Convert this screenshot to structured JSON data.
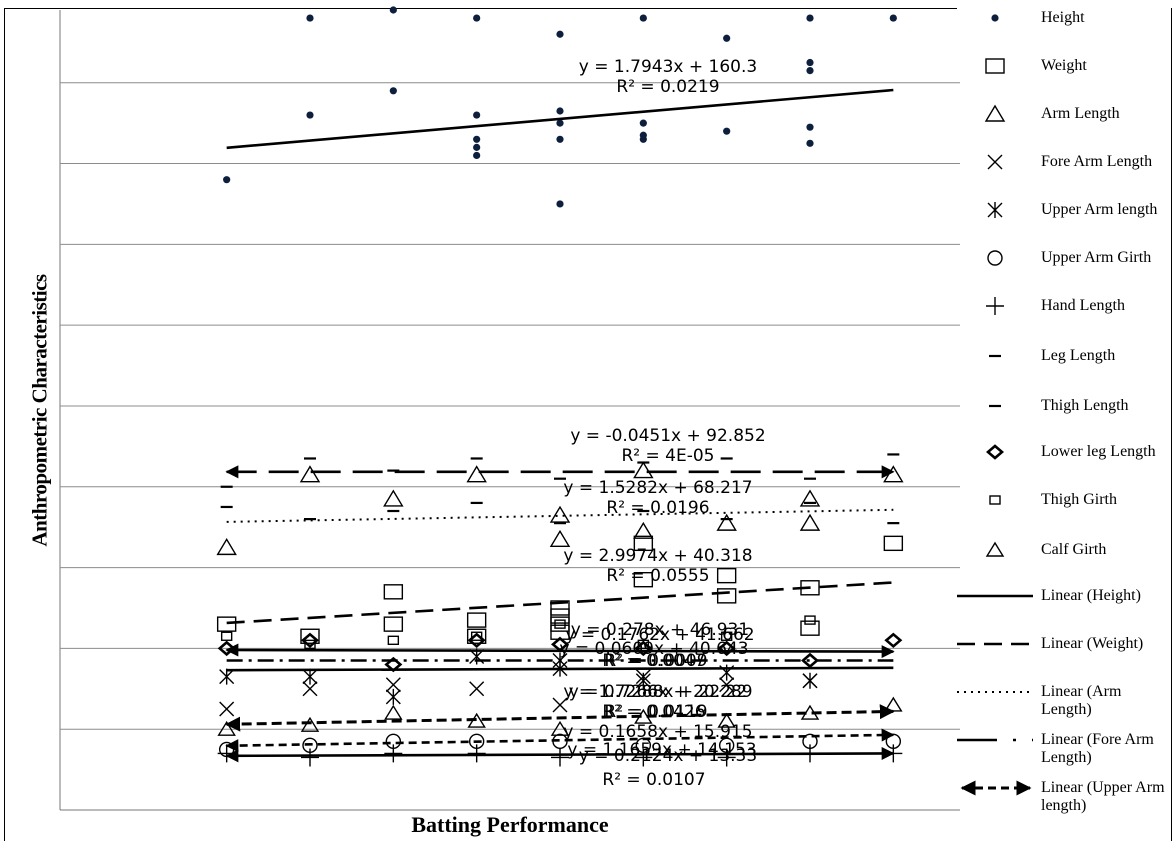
{
  "chart_data": {
    "type": "scatter",
    "xlabel": "Batting Performance",
    "ylabel": "Anthropometric Characteristics",
    "xlim": [
      0,
      10.8
    ],
    "ylim": [
      0,
      198
    ],
    "grid_lines_y": [
      20,
      40,
      60,
      80,
      100,
      120,
      140,
      160,
      180
    ],
    "legend_position": "right",
    "series": [
      {
        "name": "Height",
        "marker": "dot",
        "points": [
          [
            2,
            156
          ],
          [
            3,
            196
          ],
          [
            3,
            172
          ],
          [
            4,
            198
          ],
          [
            4,
            178
          ],
          [
            5,
            196
          ],
          [
            5,
            172
          ],
          [
            5,
            166
          ],
          [
            5,
            164
          ],
          [
            5,
            162
          ],
          [
            6,
            192
          ],
          [
            6,
            173
          ],
          [
            6,
            170
          ],
          [
            6,
            166
          ],
          [
            6,
            150
          ],
          [
            7,
            196
          ],
          [
            7,
            170
          ],
          [
            7,
            166
          ],
          [
            7,
            167
          ],
          [
            8,
            191
          ],
          [
            8,
            168
          ],
          [
            9,
            196
          ],
          [
            9,
            183
          ],
          [
            9,
            185
          ],
          [
            9,
            169
          ],
          [
            9,
            165
          ],
          [
            10,
            196
          ]
        ]
      },
      {
        "name": "Weight",
        "marker": "square",
        "points": [
          [
            2,
            46
          ],
          [
            3,
            43
          ],
          [
            4,
            54
          ],
          [
            4,
            46
          ],
          [
            5,
            47
          ],
          [
            5,
            43
          ],
          [
            6,
            50
          ],
          [
            6,
            48
          ],
          [
            6,
            46
          ],
          [
            6,
            44
          ],
          [
            7,
            66
          ],
          [
            7,
            57
          ],
          [
            8,
            58
          ],
          [
            8,
            53
          ],
          [
            9,
            55
          ],
          [
            9,
            45
          ],
          [
            10,
            66
          ]
        ]
      },
      {
        "name": "Arm Length",
        "marker": "triangle",
        "points": [
          [
            2,
            65
          ],
          [
            3,
            83
          ],
          [
            4,
            77
          ],
          [
            5,
            83
          ],
          [
            6,
            73
          ],
          [
            6,
            67
          ],
          [
            7,
            84
          ],
          [
            7,
            69
          ],
          [
            8,
            71
          ],
          [
            9,
            77
          ],
          [
            9,
            71
          ],
          [
            10,
            83
          ]
        ]
      },
      {
        "name": "Fore Arm Length",
        "marker": "x",
        "points": [
          [
            2,
            25
          ],
          [
            3,
            30
          ],
          [
            4,
            31
          ],
          [
            5,
            30
          ],
          [
            6,
            26
          ],
          [
            7,
            33
          ],
          [
            8,
            31
          ],
          [
            9,
            32
          ]
        ]
      },
      {
        "name": "Upper Arm length",
        "marker": "asterisk",
        "points": [
          [
            2,
            33
          ],
          [
            3,
            33
          ],
          [
            4,
            28
          ],
          [
            5,
            38
          ],
          [
            6,
            37
          ],
          [
            6,
            35
          ],
          [
            7,
            32
          ],
          [
            8,
            34
          ],
          [
            9,
            32
          ]
        ]
      },
      {
        "name": "Upper Arm Girth",
        "marker": "circle",
        "points": [
          [
            2,
            15
          ],
          [
            3,
            16
          ],
          [
            4,
            17
          ],
          [
            5,
            17
          ],
          [
            6,
            17
          ],
          [
            7,
            16
          ],
          [
            8,
            16
          ],
          [
            9,
            17
          ],
          [
            10,
            17
          ]
        ]
      },
      {
        "name": "Hand Length",
        "marker": "plus",
        "points": [
          [
            2,
            14
          ],
          [
            3,
            13
          ],
          [
            4,
            14
          ],
          [
            5,
            14
          ],
          [
            6,
            13
          ],
          [
            7,
            13
          ],
          [
            8,
            13
          ],
          [
            9,
            14
          ],
          [
            10,
            14
          ]
        ]
      },
      {
        "name": "Leg Length",
        "marker": "dash",
        "points": [
          [
            2,
            80
          ],
          [
            3,
            87
          ],
          [
            4,
            84
          ],
          [
            5,
            87
          ],
          [
            6,
            82
          ],
          [
            7,
            86
          ],
          [
            8,
            87
          ],
          [
            9,
            82
          ],
          [
            10,
            88
          ]
        ]
      },
      {
        "name": "Thigh Length",
        "marker": "dash",
        "points": [
          [
            2,
            75
          ],
          [
            3,
            72
          ],
          [
            4,
            74
          ],
          [
            5,
            76
          ],
          [
            6,
            71
          ],
          [
            7,
            74
          ],
          [
            8,
            72
          ],
          [
            9,
            76
          ],
          [
            10,
            71
          ]
        ]
      },
      {
        "name": "Lower leg Length",
        "marker": "diamond",
        "points": [
          [
            2,
            40
          ],
          [
            3,
            42
          ],
          [
            4,
            36
          ],
          [
            5,
            42
          ],
          [
            6,
            41
          ],
          [
            7,
            40
          ],
          [
            8,
            40
          ],
          [
            9,
            37
          ],
          [
            10,
            42
          ]
        ]
      },
      {
        "name": "Thigh Girth",
        "marker": "small-square",
        "points": [
          [
            2,
            43
          ],
          [
            3,
            41
          ],
          [
            4,
            42
          ],
          [
            5,
            43
          ],
          [
            6,
            46
          ],
          [
            7,
            41
          ],
          [
            8,
            43
          ],
          [
            9,
            47
          ]
        ]
      },
      {
        "name": "Calf Girth",
        "marker": "small-triangle",
        "points": [
          [
            2,
            20
          ],
          [
            3,
            21
          ],
          [
            4,
            24
          ],
          [
            5,
            22
          ],
          [
            6,
            20
          ],
          [
            7,
            23
          ],
          [
            8,
            22
          ],
          [
            9,
            24
          ],
          [
            10,
            26
          ]
        ]
      }
    ],
    "trendlines": [
      {
        "name": "Linear (Height)",
        "style": "solid",
        "x": [
          2,
          10
        ],
        "y": [
          163.9,
          178.2
        ]
      },
      {
        "name": "Linear (Weight)",
        "style": "dash",
        "x": [
          2,
          10
        ],
        "y": [
          46.3,
          56.3
        ]
      },
      {
        "name": "Linear (Arm Length)",
        "style": "dot",
        "x": [
          2,
          10
        ],
        "y": [
          71.3,
          74.3
        ]
      },
      {
        "name": "Linear (Fore Arm Length)",
        "style": "dashdot",
        "x": [
          2,
          10
        ],
        "y": [
          37.0,
          37.0
        ]
      },
      {
        "name": "Linear (Upper Arm length)",
        "style": "dash-arrow",
        "x": [
          2,
          10
        ],
        "y": [
          21.2,
          24.4
        ]
      },
      {
        "name": "Linear",
        "style": "long-dash-arrow",
        "x": [
          2,
          10
        ],
        "y": [
          83.7,
          83.7
        ]
      },
      {
        "name": "Linear",
        "style": "solid-arrow",
        "x": [
          2,
          10
        ],
        "y": [
          39.6,
          39.2
        ]
      },
      {
        "name": "Linear",
        "style": "solid",
        "x": [
          2,
          10
        ],
        "y": [
          34.6,
          35.2
        ]
      },
      {
        "name": "Linear",
        "style": "short-dash-arrow",
        "x": [
          2,
          10
        ],
        "y": [
          15.9,
          18.6
        ]
      },
      {
        "name": "Linear",
        "style": "solid-arrow",
        "x": [
          2,
          10
        ],
        "y": [
          13.4,
          14.0
        ]
      }
    ],
    "annotations": [
      {
        "eq": "y = 1.7943x + 160.3",
        "r2": "R² = 0.0219"
      },
      {
        "eq": "y = -0.0451x + 92.852",
        "r2": "R² = 4E-05"
      },
      {
        "eq": "y = 1.5282x + 68.217",
        "r2": "R² = 0.0196"
      },
      {
        "eq": "y = 2.9974x + 40.318",
        "r2": "R² = 0.0555"
      },
      {
        "eq": "y = 0.278x + 46.931",
        "r2": ""
      },
      {
        "eq": "y = 0.1762x + 41.662",
        "r2": ""
      },
      {
        "eq": "y = 0.0609x + 40.643",
        "r2": ""
      },
      {
        "eq": "",
        "r2": "R² = 0.0047"
      },
      {
        "eq": "",
        "r2": "R² = 0.0009"
      },
      {
        "eq": "y = 1.7266x + 20.289",
        "r2": ""
      },
      {
        "eq": "y = 0.7288x + 22.22",
        "r2": ""
      },
      {
        "eq": "",
        "r2": "R² = 0.0426"
      },
      {
        "eq": "",
        "r2": "R² = 0.0119"
      },
      {
        "eq": "y = 0.1658x + 15.915",
        "r2": ""
      },
      {
        "eq": "y = 1.1659x + 14.153",
        "r2": ""
      },
      {
        "eq": "y = 0.2124x + 13.33",
        "r2": ""
      },
      {
        "eq": "",
        "r2": "R² = 0.0107"
      }
    ],
    "legend": [
      {
        "label": "Height",
        "marker": "dot"
      },
      {
        "label": "Weight",
        "marker": "square"
      },
      {
        "label": "Arm Length",
        "marker": "triangle"
      },
      {
        "label": "Fore Arm Length",
        "marker": "x"
      },
      {
        "label": "Upper Arm length",
        "marker": "asterisk"
      },
      {
        "label": "Upper Arm Girth",
        "marker": "circle"
      },
      {
        "label": "Hand Length",
        "marker": "plus"
      },
      {
        "label": "Leg Length",
        "marker": "dash"
      },
      {
        "label": "Thigh Length",
        "marker": "dash"
      },
      {
        "label": "Lower leg Length",
        "marker": "diamond"
      },
      {
        "label": "Thigh Girth",
        "marker": "small-square"
      },
      {
        "label": "Calf Girth",
        "marker": "small-triangle"
      },
      {
        "label": "Linear (Height)",
        "marker": "line-solid"
      },
      {
        "label": "Linear (Weight)",
        "marker": "line-dash"
      },
      {
        "label": "Linear (Arm Length)",
        "marker": "line-dot"
      },
      {
        "label": "Linear (Fore Arm Length)",
        "marker": "line-dashdot"
      },
      {
        "label": "Linear (Upper Arm length)",
        "marker": "line-dash-arrow"
      }
    ]
  }
}
